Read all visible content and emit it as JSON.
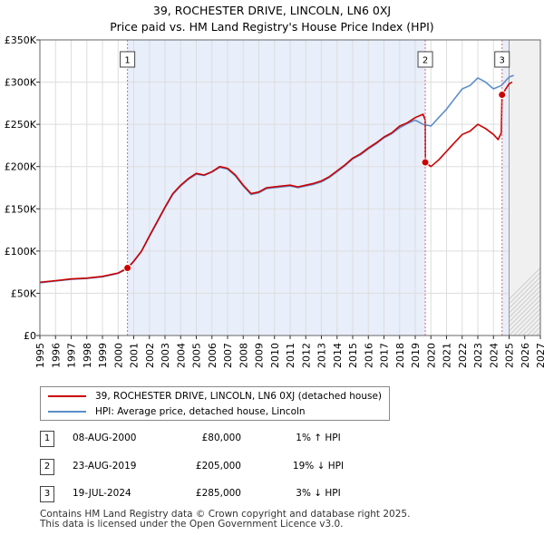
{
  "title_line1": "39, ROCHESTER DRIVE, LINCOLN, LN6 0XJ",
  "title_line2": "Price paid vs. HM Land Registry's House Price Index (HPI)",
  "chart_data": {
    "type": "line",
    "ylim": [
      0,
      350000
    ],
    "xlim": [
      1995,
      2027
    ],
    "y_ticks": [
      0,
      50000,
      100000,
      150000,
      200000,
      250000,
      300000,
      350000
    ],
    "y_tick_labels": [
      "£0",
      "£50K",
      "£100K",
      "£150K",
      "£200K",
      "£250K",
      "£300K",
      "£350K"
    ],
    "x_ticks": [
      1995,
      1996,
      1997,
      1998,
      1999,
      2000,
      2001,
      2002,
      2003,
      2004,
      2005,
      2006,
      2007,
      2008,
      2009,
      2010,
      2011,
      2012,
      2013,
      2014,
      2015,
      2016,
      2017,
      2018,
      2019,
      2020,
      2021,
      2022,
      2023,
      2024,
      2025,
      2026,
      2027
    ],
    "x_tick_labels": [
      "1995",
      "1996",
      "1997",
      "1998",
      "1999",
      "2000",
      "2001",
      "2002",
      "2003",
      "2004",
      "2005",
      "2006",
      "2007",
      "2008",
      "2009",
      "2010",
      "2011",
      "2012",
      "2013",
      "2014",
      "2015",
      "2016",
      "2017",
      "2018",
      "2019",
      "2020",
      "2021",
      "2022",
      "2023",
      "2024",
      "2025",
      "2026",
      "2027"
    ],
    "shaded_periods": [
      [
        2000.6,
        2019.64
      ],
      [
        2024.55,
        2025.0
      ]
    ],
    "future_from": 2025.0,
    "series": [
      {
        "name": "39, ROCHESTER DRIVE, LINCOLN, LN6 0XJ (detached house)",
        "color": "#cc0000",
        "x": [
          1995.0,
          1996.0,
          1997.0,
          1998.0,
          1999.0,
          2000.0,
          2000.6,
          2001.0,
          2001.5,
          2002.0,
          2002.5,
          2003.0,
          2003.5,
          2004.0,
          2004.5,
          2005.0,
          2005.5,
          2006.0,
          2006.5,
          2007.0,
          2007.5,
          2008.0,
          2008.5,
          2009.0,
          2009.5,
          2010.0,
          2010.5,
          2011.0,
          2011.5,
          2012.0,
          2012.5,
          2013.0,
          2013.5,
          2014.0,
          2014.5,
          2015.0,
          2015.5,
          2016.0,
          2016.5,
          2017.0,
          2017.5,
          2018.0,
          2018.5,
          2019.0,
          2019.5,
          2019.64,
          2019.65,
          2020.0,
          2020.5,
          2021.0,
          2021.5,
          2022.0,
          2022.5,
          2023.0,
          2023.5,
          2024.0,
          2024.3,
          2024.5,
          2024.55,
          2025.0,
          2025.2
        ],
        "y": [
          63000,
          65000,
          67000,
          68000,
          70000,
          74000,
          80000,
          88000,
          100000,
          118000,
          135000,
          152000,
          168000,
          178000,
          186000,
          192000,
          190000,
          194000,
          200000,
          198000,
          190000,
          178000,
          168000,
          170000,
          175000,
          176000,
          177000,
          178000,
          176000,
          178000,
          180000,
          183000,
          188000,
          195000,
          202000,
          210000,
          215000,
          222000,
          228000,
          235000,
          240000,
          248000,
          252000,
          258000,
          262000,
          255000,
          205000,
          200000,
          208000,
          218000,
          228000,
          238000,
          242000,
          250000,
          245000,
          238000,
          232000,
          240000,
          285000,
          298000,
          300000
        ]
      },
      {
        "name": "HPI: Average price, detached house, Lincoln",
        "color": "#5b8ec8",
        "x": [
          1995.0,
          1996.0,
          1997.0,
          1998.0,
          1999.0,
          2000.0,
          2000.6,
          2001.0,
          2001.5,
          2002.0,
          2002.5,
          2003.0,
          2003.5,
          2004.0,
          2004.5,
          2005.0,
          2005.5,
          2006.0,
          2006.5,
          2007.0,
          2007.5,
          2008.0,
          2008.5,
          2009.0,
          2009.5,
          2010.0,
          2010.5,
          2011.0,
          2011.5,
          2012.0,
          2012.5,
          2013.0,
          2013.5,
          2014.0,
          2014.5,
          2015.0,
          2015.5,
          2016.0,
          2016.5,
          2017.0,
          2017.5,
          2018.0,
          2018.5,
          2019.0,
          2019.5,
          2020.0,
          2020.5,
          2021.0,
          2021.5,
          2022.0,
          2022.5,
          2023.0,
          2023.5,
          2024.0,
          2024.5,
          2025.0,
          2025.3
        ],
        "y": [
          62500,
          64500,
          66500,
          67500,
          69500,
          73500,
          79000,
          87500,
          99500,
          117000,
          134000,
          151000,
          167000,
          177000,
          185000,
          191000,
          189500,
          193500,
          199000,
          197000,
          189000,
          177000,
          167000,
          169000,
          174000,
          175000,
          176000,
          177000,
          175000,
          177000,
          179000,
          182000,
          187000,
          194000,
          201000,
          209000,
          214000,
          221000,
          227000,
          234000,
          239000,
          246000,
          251000,
          255000,
          250000,
          248000,
          258000,
          268000,
          280000,
          292000,
          296000,
          305000,
          300000,
          292000,
          296000,
          306000,
          308000
        ]
      }
    ],
    "sale_points": [
      {
        "label": "1",
        "x": 2000.6,
        "y": 80000
      },
      {
        "label": "2",
        "x": 2019.64,
        "y": 205000
      },
      {
        "label": "3",
        "x": 2024.55,
        "y": 285000
      }
    ]
  },
  "legend": {
    "property_label": "39, ROCHESTER DRIVE, LINCOLN, LN6 0XJ (detached house)",
    "hpi_label": "HPI: Average price, detached house, Lincoln",
    "property_color": "#cc0000",
    "hpi_color": "#5b8ec8"
  },
  "transactions": [
    {
      "num": "1",
      "date": "08-AUG-2000",
      "price": "£80,000",
      "hpi": "1% ↑ HPI"
    },
    {
      "num": "2",
      "date": "23-AUG-2019",
      "price": "£205,000",
      "hpi": "19% ↓ HPI"
    },
    {
      "num": "3",
      "date": "19-JUL-2024",
      "price": "£285,000",
      "hpi": "3% ↓ HPI"
    }
  ],
  "footer_line1": "Contains HM Land Registry data © Crown copyright and database right 2025.",
  "footer_line2": "This data is licensed under the Open Government Licence v3.0."
}
